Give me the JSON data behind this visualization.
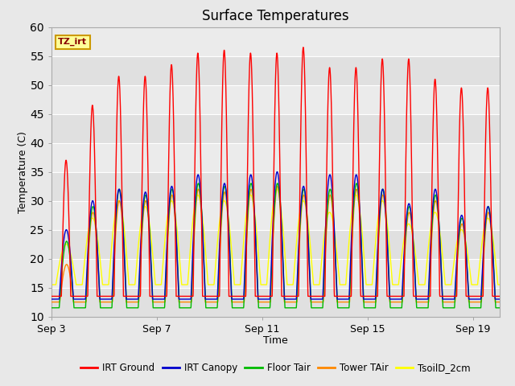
{
  "title": "Surface Temperatures",
  "xlabel": "Time",
  "ylabel": "Temperature (C)",
  "ylim": [
    10,
    60
  ],
  "xtick_labels": [
    "Sep 3",
    "Sep 7",
    "Sep 11",
    "Sep 15",
    "Sep 19"
  ],
  "xtick_positions": [
    0,
    4,
    8,
    12,
    16
  ],
  "fig_bg_color": "#e8e8e8",
  "plot_bg_color": "#e8e8e8",
  "band_light": "#ebebeb",
  "band_dark": "#dedede",
  "grid_color": "#ffffff",
  "legend_entries": [
    {
      "label": "IRT Ground",
      "color": "#ff0000"
    },
    {
      "label": "IRT Canopy",
      "color": "#0000cc"
    },
    {
      "label": "Floor Tair",
      "color": "#00bb00"
    },
    {
      "label": "Tower TAir",
      "color": "#ff8800"
    },
    {
      "label": "TsoilD_2cm",
      "color": "#ffff00"
    }
  ],
  "annotation_text": "TZ_irt",
  "annotation_color": "#880000",
  "annotation_bg": "#ffff99",
  "annotation_border": "#cc9900",
  "n_days": 17,
  "irt_ground_peaks": [
    37,
    46.5,
    51.5,
    51.5,
    53.5,
    55.5,
    56,
    55.5,
    55.5,
    56.5,
    53,
    53,
    54.5,
    54.5,
    51,
    49.5,
    49.5
  ],
  "irt_canopy_peaks": [
    25,
    30,
    32,
    31.5,
    32.5,
    34.5,
    33,
    34.5,
    35,
    32.5,
    34.5,
    34.5,
    32,
    29.5,
    32,
    27.5,
    29
  ],
  "floor_peaks": [
    23,
    29,
    32,
    31,
    32,
    33,
    32.5,
    33,
    33,
    32,
    32,
    33,
    32,
    29,
    31,
    27,
    29
  ],
  "tower_peaks": [
    19,
    28,
    30,
    30,
    31,
    32,
    31.5,
    32,
    32.5,
    31,
    31,
    32,
    31,
    28,
    30,
    26,
    28
  ],
  "soil_peaks": [
    22.5,
    27,
    30,
    29,
    30,
    31,
    30,
    31,
    32,
    30,
    28,
    31,
    30,
    26,
    28,
    25,
    27
  ]
}
